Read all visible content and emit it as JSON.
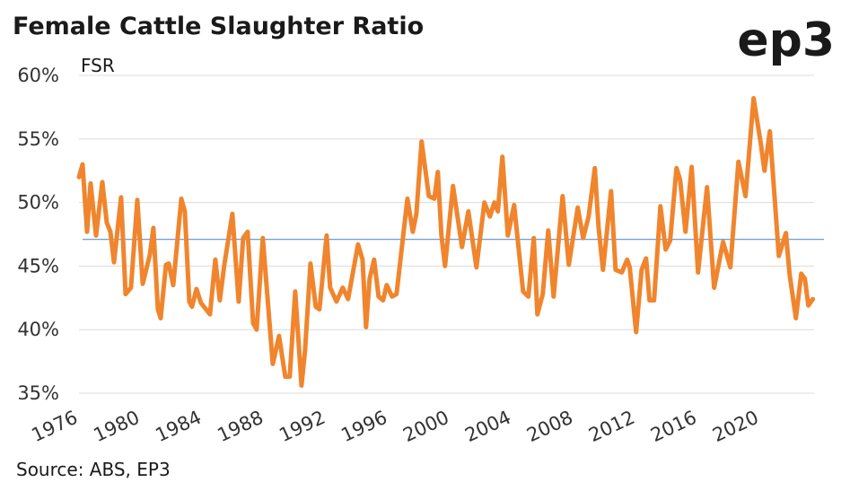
{
  "chart_data": {
    "type": "line",
    "title": "Female Cattle Slaughter Ratio",
    "logo": "ep3",
    "y_axis_label": "FSR",
    "source": "Source: ABS, EP3",
    "xlim": [
      1976,
      2023.5
    ],
    "xticks": [
      1976,
      1980,
      1984,
      1988,
      1992,
      1996,
      2000,
      2004,
      2008,
      2012,
      2016,
      2020
    ],
    "ylim": [
      35,
      60
    ],
    "yticks": [
      {
        "value": 35,
        "label": "35%"
      },
      {
        "value": 40,
        "label": "40%"
      },
      {
        "value": 45,
        "label": "45%"
      },
      {
        "value": 50,
        "label": "50%"
      },
      {
        "value": 55,
        "label": "55%"
      },
      {
        "value": 60,
        "label": "60%"
      }
    ],
    "grid": true,
    "reference_line": {
      "value": 47.1,
      "color": "#5b8fd4"
    },
    "x": [
      1976.0,
      1976.23,
      1976.52,
      1976.75,
      1977.1,
      1977.51,
      1977.8,
      1978.03,
      1978.26,
      1978.72,
      1979.01,
      1979.36,
      1979.77,
      1980.12,
      1980.58,
      1980.81,
      1981.1,
      1981.28,
      1981.62,
      1981.8,
      1982.09,
      1982.61,
      1982.84,
      1983.13,
      1983.3,
      1983.59,
      1983.88,
      1984.46,
      1984.81,
      1985.1,
      1985.39,
      1985.91,
      1986.32,
      1986.61,
      1986.9,
      1987.25,
      1987.48,
      1987.88,
      1988.52,
      1988.93,
      1989.33,
      1989.62,
      1989.97,
      1990.38,
      1990.61,
      1990.96,
      1991.3,
      1991.54,
      1992.0,
      1992.23,
      1992.64,
      1993.04,
      1993.39,
      1994.03,
      1994.32,
      1994.55,
      1994.78,
      1995.07,
      1995.36,
      1995.65,
      1995.88,
      1996.23,
      1996.52,
      1997.22,
      1997.57,
      1997.8,
      1998.14,
      1998.61,
      1998.96,
      1999.19,
      1999.42,
      1999.65,
      2000.17,
      2000.75,
      2001.16,
      2001.68,
      2002.2,
      2002.55,
      2002.84,
      2003.07,
      2003.36,
      2003.71,
      2004.12,
      2004.7,
      2005.04,
      2005.39,
      2005.62,
      2005.97,
      2006.32,
      2006.67,
      2007.25,
      2007.65,
      2008.23,
      2008.58,
      2008.93,
      2009.33,
      2009.57,
      2009.86,
      2010.38,
      2010.67,
      2011.07,
      2011.42,
      2011.59,
      2012.0,
      2012.35,
      2012.64,
      2012.87,
      2013.16,
      2013.57,
      2013.91,
      2014.2,
      2014.61,
      2014.84,
      2015.19,
      2015.59,
      2016.0,
      2016.58,
      2017.04,
      2017.62,
      2018.09,
      2018.61,
      2019.07,
      2019.59,
      2020.06,
      2020.29,
      2020.64,
      2021.22,
      2021.68,
      2021.91,
      2022.32,
      2022.67,
      2022.9,
      2023.13,
      2023.42
    ],
    "series": [
      {
        "name": "FSR",
        "color": "#f0852d",
        "values": [
          52.0,
          53.0,
          47.7,
          51.5,
          47.4,
          51.6,
          48.4,
          47.7,
          45.3,
          50.4,
          42.8,
          43.3,
          50.2,
          43.6,
          45.9,
          48.0,
          41.6,
          40.9,
          45.1,
          45.2,
          43.5,
          50.3,
          49.3,
          42.2,
          41.8,
          43.2,
          42.1,
          41.2,
          45.5,
          42.3,
          45.1,
          49.1,
          42.2,
          47.2,
          47.7,
          40.5,
          40.0,
          47.2,
          37.3,
          39.5,
          36.3,
          36.3,
          43.0,
          35.6,
          38.4,
          45.2,
          41.8,
          41.6,
          47.4,
          43.3,
          42.2,
          43.3,
          42.4,
          46.7,
          45.5,
          40.2,
          44.0,
          45.5,
          42.6,
          42.3,
          43.5,
          42.6,
          42.8,
          50.3,
          47.7,
          49.1,
          54.8,
          50.5,
          50.3,
          52.4,
          47.4,
          45.0,
          51.3,
          46.5,
          49.3,
          44.9,
          50.0,
          48.9,
          50.0,
          49.3,
          53.6,
          47.4,
          49.8,
          43.0,
          42.6,
          47.2,
          41.2,
          42.8,
          47.8,
          42.6,
          50.5,
          45.1,
          49.6,
          47.2,
          48.9,
          52.7,
          48.1,
          44.7,
          50.9,
          44.7,
          44.5,
          45.5,
          44.9,
          39.8,
          44.7,
          45.6,
          42.3,
          42.3,
          49.7,
          46.3,
          47.0,
          52.7,
          51.8,
          47.7,
          52.8,
          44.5,
          51.2,
          43.3,
          46.9,
          44.9,
          53.2,
          50.5,
          58.2,
          54.6,
          52.5,
          55.6,
          45.8,
          47.6,
          44.4,
          40.9,
          44.4,
          44.0,
          41.9,
          42.4
        ]
      }
    ]
  }
}
